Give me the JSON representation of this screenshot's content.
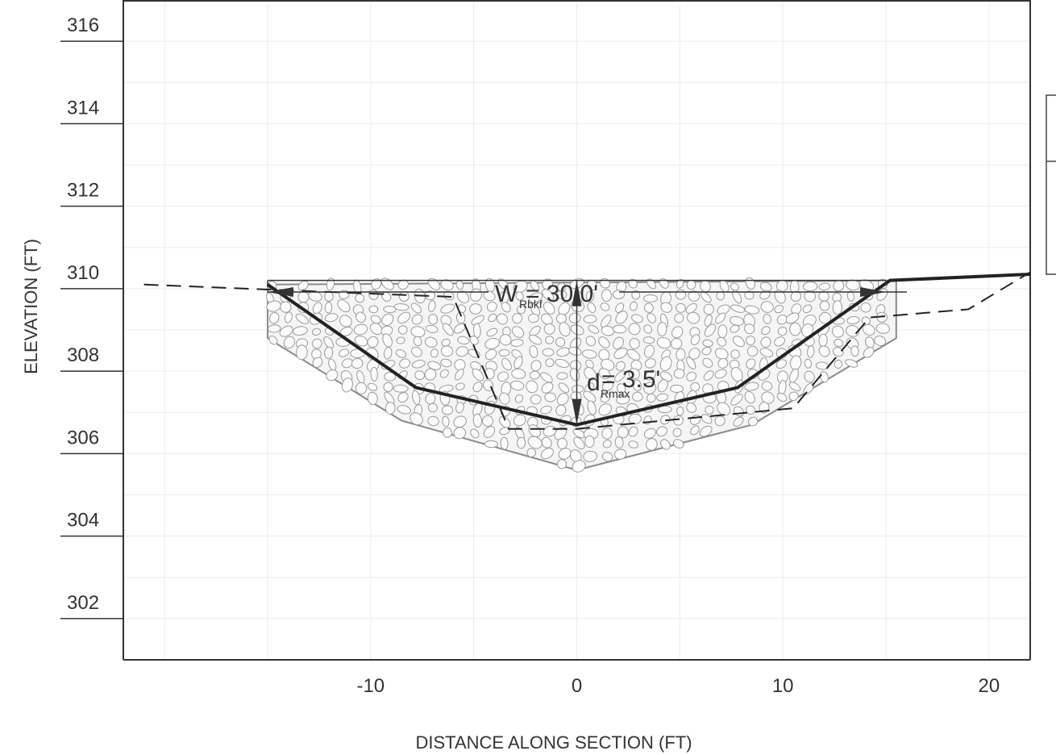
{
  "chart_data": {
    "type": "line",
    "xlabel": "DISTANCE ALONG SECTION (FT)",
    "ylabel": "ELEVATION (FT)",
    "xlim": [
      -22,
      22
    ],
    "ylim": [
      301,
      317
    ],
    "x_ticks": [
      -10,
      0,
      10,
      20
    ],
    "x_tick_labels": [
      "-10",
      "0",
      "10",
      "20"
    ],
    "y_ticks": [
      302,
      304,
      306,
      308,
      310,
      312,
      314,
      316
    ],
    "y_tick_labels": [
      "302",
      "304",
      "306",
      "308",
      "310",
      "312",
      "314",
      "316"
    ],
    "grid": true,
    "series": [
      {
        "style": "solid",
        "x": [
          -15,
          -7.8,
          0,
          7.8,
          15.2,
          22
        ],
        "y": [
          310.1,
          307.6,
          306.7,
          307.6,
          310.2,
          310.35
        ]
      },
      {
        "style": "dashed",
        "x": [
          -21,
          -6,
          -3.3,
          0,
          10.5,
          14.2,
          19,
          22
        ],
        "y": [
          310.1,
          309.8,
          306.6,
          306.6,
          307.1,
          309.3,
          309.5,
          310.4
        ]
      },
      {
        "style": "riprap",
        "x": [
          -15,
          -15,
          -8.5,
          0,
          8.5,
          15.5,
          15.5
        ],
        "y": [
          310.1,
          308.8,
          306.8,
          305.6,
          306.7,
          308.8,
          310.2
        ]
      }
    ],
    "annotations": [
      {
        "main": "W",
        "subscript": "Rbkf",
        "value": "= 30.0'"
      },
      {
        "main": "d",
        "subscript": "Rmax",
        "value": "= 3.5'"
      }
    ],
    "bankfull_elevation": 310.2,
    "bankfull_extent": [
      -15,
      15
    ]
  }
}
